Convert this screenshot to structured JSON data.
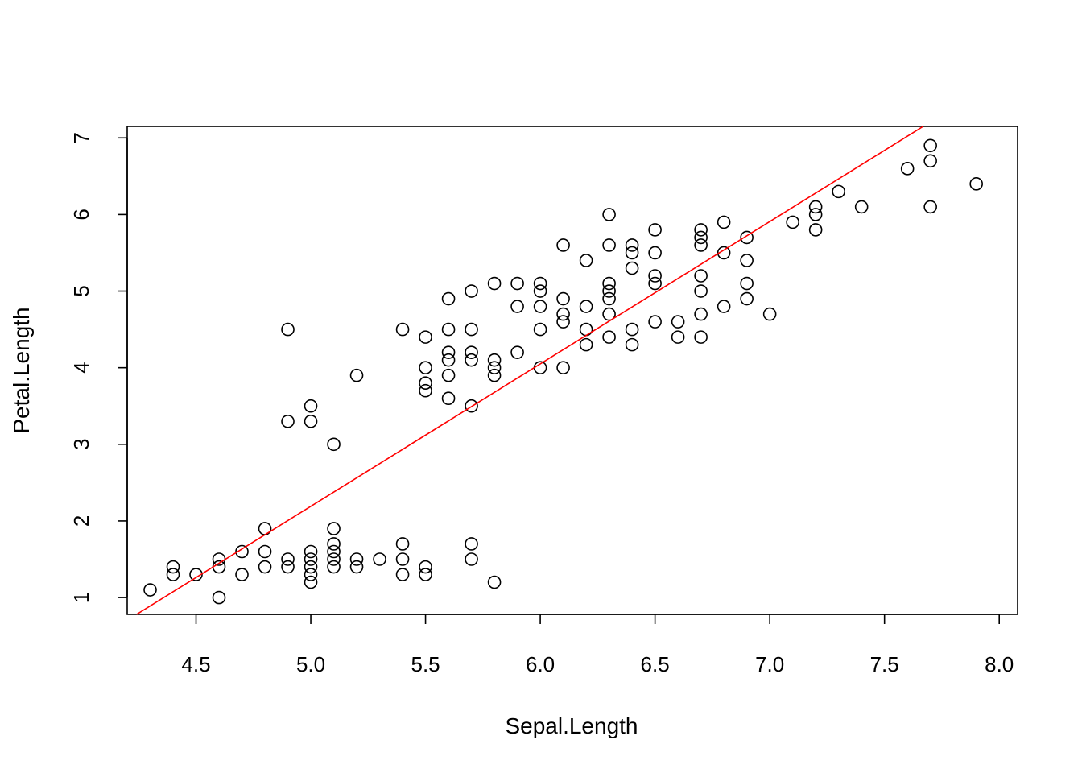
{
  "chart_data": {
    "type": "scatter",
    "title": "",
    "xlabel": "Sepal.Length",
    "ylabel": "Petal.Length",
    "xlim": [
      4.2,
      8.08
    ],
    "ylim": [
      0.78,
      7.15
    ],
    "x_ticks": [
      4.5,
      5.0,
      5.5,
      6.0,
      6.5,
      7.0,
      7.5,
      8.0
    ],
    "x_tick_labels": [
      "4.5",
      "5.0",
      "5.5",
      "6.0",
      "6.5",
      "7.0",
      "7.5",
      "8.0"
    ],
    "y_ticks": [
      1,
      2,
      3,
      4,
      5,
      6,
      7
    ],
    "y_tick_labels": [
      "1",
      "2",
      "3",
      "4",
      "5",
      "6",
      "7"
    ],
    "grid": false,
    "point_color": "#000000",
    "regression_line": {
      "intercept": -7.101,
      "slope": 1.8584,
      "color": "#ff0000"
    },
    "points": [
      [
        4.3,
        1.1
      ],
      [
        4.4,
        1.4
      ],
      [
        4.4,
        1.3
      ],
      [
        4.5,
        1.3
      ],
      [
        4.6,
        1.5
      ],
      [
        4.6,
        1.4
      ],
      [
        4.6,
        1.0
      ],
      [
        4.7,
        1.6
      ],
      [
        4.7,
        1.3
      ],
      [
        4.8,
        1.9
      ],
      [
        4.8,
        1.6
      ],
      [
        4.8,
        1.4
      ],
      [
        4.9,
        1.5
      ],
      [
        4.9,
        1.4
      ],
      [
        4.9,
        4.5
      ],
      [
        4.9,
        3.3
      ],
      [
        5.0,
        1.6
      ],
      [
        5.0,
        1.5
      ],
      [
        5.0,
        1.4
      ],
      [
        5.0,
        1.3
      ],
      [
        5.0,
        1.2
      ],
      [
        5.0,
        3.5
      ],
      [
        5.0,
        3.3
      ],
      [
        5.1,
        1.9
      ],
      [
        5.1,
        1.7
      ],
      [
        5.1,
        1.6
      ],
      [
        5.1,
        1.5
      ],
      [
        5.1,
        1.4
      ],
      [
        5.1,
        3.0
      ],
      [
        5.2,
        1.5
      ],
      [
        5.2,
        1.4
      ],
      [
        5.2,
        3.9
      ],
      [
        5.3,
        1.5
      ],
      [
        5.4,
        1.7
      ],
      [
        5.4,
        1.5
      ],
      [
        5.4,
        1.3
      ],
      [
        5.4,
        4.5
      ],
      [
        5.5,
        1.4
      ],
      [
        5.5,
        1.3
      ],
      [
        5.5,
        4.4
      ],
      [
        5.5,
        4.0
      ],
      [
        5.5,
        3.8
      ],
      [
        5.5,
        3.7
      ],
      [
        5.6,
        4.9
      ],
      [
        5.6,
        4.5
      ],
      [
        5.6,
        4.2
      ],
      [
        5.6,
        4.1
      ],
      [
        5.6,
        3.9
      ],
      [
        5.6,
        3.6
      ],
      [
        5.7,
        1.7
      ],
      [
        5.7,
        1.5
      ],
      [
        5.7,
        5.0
      ],
      [
        5.7,
        4.5
      ],
      [
        5.7,
        4.2
      ],
      [
        5.7,
        4.1
      ],
      [
        5.7,
        3.5
      ],
      [
        5.8,
        1.2
      ],
      [
        5.8,
        5.1
      ],
      [
        5.8,
        4.1
      ],
      [
        5.8,
        4.0
      ],
      [
        5.8,
        3.9
      ],
      [
        5.9,
        5.1
      ],
      [
        5.9,
        4.8
      ],
      [
        5.9,
        4.2
      ],
      [
        6.0,
        5.1
      ],
      [
        6.0,
        5.0
      ],
      [
        6.0,
        4.8
      ],
      [
        6.0,
        4.5
      ],
      [
        6.0,
        4.0
      ],
      [
        6.1,
        5.6
      ],
      [
        6.1,
        4.9
      ],
      [
        6.1,
        4.7
      ],
      [
        6.1,
        4.6
      ],
      [
        6.1,
        4.0
      ],
      [
        6.2,
        5.4
      ],
      [
        6.2,
        4.8
      ],
      [
        6.2,
        4.5
      ],
      [
        6.2,
        4.3
      ],
      [
        6.3,
        6.0
      ],
      [
        6.3,
        5.6
      ],
      [
        6.3,
        5.1
      ],
      [
        6.3,
        5.0
      ],
      [
        6.3,
        4.9
      ],
      [
        6.3,
        4.7
      ],
      [
        6.3,
        4.4
      ],
      [
        6.4,
        5.6
      ],
      [
        6.4,
        5.5
      ],
      [
        6.4,
        5.3
      ],
      [
        6.4,
        4.5
      ],
      [
        6.4,
        4.3
      ],
      [
        6.5,
        5.8
      ],
      [
        6.5,
        5.5
      ],
      [
        6.5,
        5.2
      ],
      [
        6.5,
        5.1
      ],
      [
        6.5,
        4.6
      ],
      [
        6.6,
        4.6
      ],
      [
        6.6,
        4.4
      ],
      [
        6.7,
        5.8
      ],
      [
        6.7,
        5.7
      ],
      [
        6.7,
        5.6
      ],
      [
        6.7,
        5.2
      ],
      [
        6.7,
        5.0
      ],
      [
        6.7,
        4.7
      ],
      [
        6.7,
        4.4
      ],
      [
        6.8,
        5.9
      ],
      [
        6.8,
        5.5
      ],
      [
        6.8,
        4.8
      ],
      [
        6.9,
        5.7
      ],
      [
        6.9,
        5.4
      ],
      [
        6.9,
        5.1
      ],
      [
        6.9,
        4.9
      ],
      [
        7.0,
        4.7
      ],
      [
        7.1,
        5.9
      ],
      [
        7.2,
        6.1
      ],
      [
        7.2,
        6.0
      ],
      [
        7.2,
        5.8
      ],
      [
        7.3,
        6.3
      ],
      [
        7.4,
        6.1
      ],
      [
        7.6,
        6.6
      ],
      [
        7.7,
        6.9
      ],
      [
        7.7,
        6.7
      ],
      [
        7.7,
        6.1
      ],
      [
        7.9,
        6.4
      ]
    ]
  }
}
